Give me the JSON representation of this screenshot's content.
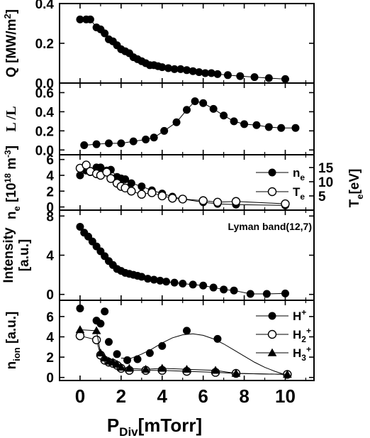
{
  "figure": {
    "xlabel": "P",
    "xlabel_sub": "Div",
    "xlabel_unit": "[mTorr]",
    "x_ticks": [
      "0",
      "2",
      "4",
      "6",
      "8",
      "10"
    ]
  },
  "chart_data": [
    {
      "type": "line",
      "xlim": [
        -1,
        11.4
      ],
      "ylim": [
        0,
        0.4
      ],
      "y_ticks": [
        "0.0",
        "0.2",
        "0.4"
      ],
      "y_tick_values": [
        0.0,
        0.2,
        0.4
      ],
      "ylabel_parts": [
        "Q [MW/m",
        "2",
        "]"
      ],
      "series": [
        {
          "marker": "filled-circle",
          "x": [
            0.0,
            0.3,
            0.5,
            0.8,
            1.0,
            1.2,
            1.4,
            1.6,
            1.8,
            2.0,
            2.2,
            2.4,
            2.6,
            2.8,
            3.0,
            3.2,
            3.4,
            3.6,
            3.8,
            4.0,
            4.3,
            4.6,
            4.9,
            5.2,
            5.5,
            5.8,
            6.1,
            6.4,
            6.7,
            7.2,
            7.8,
            8.5,
            9.2,
            10.0
          ],
          "y": [
            0.32,
            0.32,
            0.32,
            0.28,
            0.27,
            0.25,
            0.22,
            0.21,
            0.19,
            0.17,
            0.16,
            0.15,
            0.13,
            0.12,
            0.11,
            0.1,
            0.09,
            0.09,
            0.085,
            0.08,
            0.075,
            0.07,
            0.07,
            0.065,
            0.06,
            0.055,
            0.05,
            0.05,
            0.045,
            0.04,
            0.035,
            0.03,
            0.025,
            0.02
          ]
        }
      ]
    },
    {
      "type": "line",
      "xlim": [
        -1,
        11.4
      ],
      "ylim": [
        -0.05,
        0.7
      ],
      "y_ticks": [
        "0.0",
        "0.2",
        "0.4",
        "0.6"
      ],
      "y_tick_values": [
        0.0,
        0.2,
        0.4,
        0.6
      ],
      "ylabel_parts": [
        "L  /L"
      ],
      "series": [
        {
          "marker": "filled-circle",
          "x": [
            0.2,
            0.8,
            1.4,
            2.0,
            2.6,
            3.2,
            3.6,
            4.1,
            4.7,
            5.2,
            5.6,
            6.0,
            6.5,
            7.0,
            7.5,
            8.0,
            8.6,
            9.2,
            9.8,
            10.5
          ],
          "y": [
            0.05,
            0.06,
            0.07,
            0.07,
            0.09,
            0.11,
            0.13,
            0.2,
            0.29,
            0.42,
            0.51,
            0.49,
            0.43,
            0.36,
            0.3,
            0.27,
            0.26,
            0.24,
            0.23,
            0.23
          ]
        }
      ]
    },
    {
      "type": "line",
      "xlim": [
        -1,
        11.4
      ],
      "ylim": [
        -0.4,
        6.6
      ],
      "y_ticks": [
        "0",
        "2",
        "4",
        "6"
      ],
      "y_tick_values": [
        0,
        2,
        4,
        6
      ],
      "ylabel_parts": [
        "n",
        "e",
        " [10",
        "18",
        " m",
        "-3",
        "]"
      ],
      "y2": {
        "ylim": [
          0,
          19.5
        ],
        "ticks": [
          "5",
          "10",
          "15"
        ],
        "tick_values": [
          5,
          10,
          15
        ],
        "label": "T",
        "label_sub": "e",
        "label_unit": "[eV]"
      },
      "legend": [
        {
          "name": "n",
          "sub": "e",
          "marker": "filled-circle"
        },
        {
          "name": "T",
          "sub": "e",
          "marker": "open-circle"
        }
      ],
      "series": [
        {
          "marker": "filled-circle",
          "axis": "left",
          "x": [
            0.0,
            0.3,
            0.5,
            0.8,
            1.0,
            1.3,
            1.5,
            1.8,
            2.0,
            2.2,
            2.5,
            3.0,
            3.5,
            4.0,
            4.5,
            5.0,
            6.0,
            6.7,
            7.6,
            10.0
          ],
          "y": [
            4.0,
            4.6,
            4.4,
            5.0,
            5.0,
            4.6,
            4.7,
            3.8,
            3.6,
            3.5,
            3.0,
            2.6,
            2.1,
            1.7,
            1.3,
            1.0,
            0.6,
            0.4,
            0.3,
            0.2
          ]
        },
        {
          "marker": "open-circle",
          "axis": "left",
          "x": [
            0.0,
            0.3,
            0.5,
            0.8,
            1.0,
            1.3,
            1.5,
            1.8,
            2.0,
            2.2,
            2.5,
            3.0,
            3.5,
            4.0,
            4.5,
            5.0,
            6.0,
            6.7,
            7.6,
            10.0
          ],
          "y": [
            4.9,
            5.3,
            4.5,
            4.2,
            4.0,
            4.4,
            3.6,
            3.0,
            2.6,
            2.4,
            2.0,
            1.6,
            1.8,
            1.4,
            1.1,
            1.0,
            0.8,
            0.6,
            0.7,
            0.4
          ]
        }
      ]
    },
    {
      "type": "line",
      "xlim": [
        -1,
        11.4
      ],
      "ylim": [
        -0.6,
        8.6
      ],
      "y_ticks": [
        "0",
        "4",
        "8"
      ],
      "y_tick_values": [
        0,
        4,
        8
      ],
      "ylabel_parts": [
        "Intensity"
      ],
      "ylabel_unit": "[a.u.]",
      "annotation": "Lyman band(12,7)",
      "series": [
        {
          "marker": "filled-circle",
          "x": [
            0.0,
            0.2,
            0.4,
            0.6,
            0.8,
            1.0,
            1.2,
            1.4,
            1.6,
            1.8,
            2.0,
            2.2,
            2.4,
            2.6,
            2.8,
            3.0,
            3.3,
            3.6,
            3.9,
            4.2,
            4.6,
            5.0,
            5.5,
            6.0,
            6.5,
            7.0,
            7.5,
            8.3,
            9.1,
            10.0
          ],
          "y": [
            6.9,
            6.3,
            5.9,
            5.4,
            4.9,
            4.4,
            3.9,
            3.4,
            3.0,
            2.6,
            2.4,
            2.2,
            2.1,
            2.0,
            1.9,
            1.8,
            1.6,
            1.5,
            1.4,
            1.3,
            1.2,
            1.1,
            1.0,
            0.9,
            0.7,
            0.5,
            0.4,
            0.05,
            0.05,
            0.1
          ]
        }
      ]
    },
    {
      "type": "line",
      "xlim": [
        -1,
        11.4
      ],
      "ylim": [
        -0.3,
        7.6
      ],
      "y_ticks": [
        "0",
        "2",
        "4",
        "6"
      ],
      "y_tick_values": [
        0,
        2,
        4,
        6
      ],
      "ylabel_parts": [
        "n",
        "ion",
        " [a.u.]"
      ],
      "legend": [
        {
          "name": "H",
          "sup": "+",
          "marker": "filled-circle"
        },
        {
          "name": "H",
          "sub": "2",
          "sup": "+",
          "marker": "open-circle"
        },
        {
          "name": "H",
          "sub": "3",
          "sup": "+",
          "marker": "filled-triangle"
        }
      ],
      "series": [
        {
          "marker": "filled-circle",
          "x": [
            0.0,
            0.8,
            1.0,
            1.2,
            1.4,
            1.8,
            2.3,
            2.8,
            3.4,
            4.0,
            5.2,
            6.7,
            10.1
          ],
          "y": [
            6.8,
            5.6,
            5.3,
            6.5,
            3.5,
            2.3,
            1.7,
            1.8,
            2.4,
            3.1,
            4.6,
            3.8,
            0.3
          ]
        },
        {
          "marker": "open-circle",
          "x": [
            0.0,
            0.8,
            1.0,
            1.2,
            1.4,
            1.6,
            1.8,
            2.0,
            2.4,
            3.2,
            4.0,
            5.2,
            6.6,
            7.6,
            10.1
          ],
          "y": [
            4.1,
            3.7,
            2.2,
            1.7,
            1.5,
            1.4,
            1.2,
            0.9,
            0.7,
            0.7,
            0.7,
            0.6,
            0.5,
            0.4,
            0.3
          ]
        },
        {
          "marker": "filled-triangle",
          "x": [
            0.0,
            0.8,
            1.0,
            1.2,
            1.4,
            1.6,
            1.8,
            2.0,
            2.4,
            3.2,
            4.0,
            5.2,
            6.6,
            7.6,
            10.1
          ],
          "y": [
            4.7,
            4.6,
            2.4,
            1.9,
            1.6,
            1.5,
            1.3,
            1.0,
            0.9,
            0.8,
            0.9,
            0.8,
            0.7,
            0.4,
            0.3
          ]
        }
      ],
      "fit_curve": {
        "x": [
          2.0,
          2.5,
          3.0,
          3.5,
          4.0,
          4.5,
          5.0,
          5.5,
          6.0,
          6.5,
          7.0,
          7.5,
          8.0,
          8.5,
          9.0,
          9.5,
          10.1
        ],
        "y": [
          1.9,
          1.9,
          2.3,
          2.8,
          3.4,
          3.9,
          4.2,
          4.3,
          4.15,
          3.8,
          3.3,
          2.7,
          2.1,
          1.5,
          1.0,
          0.6,
          0.2
        ]
      }
    }
  ]
}
